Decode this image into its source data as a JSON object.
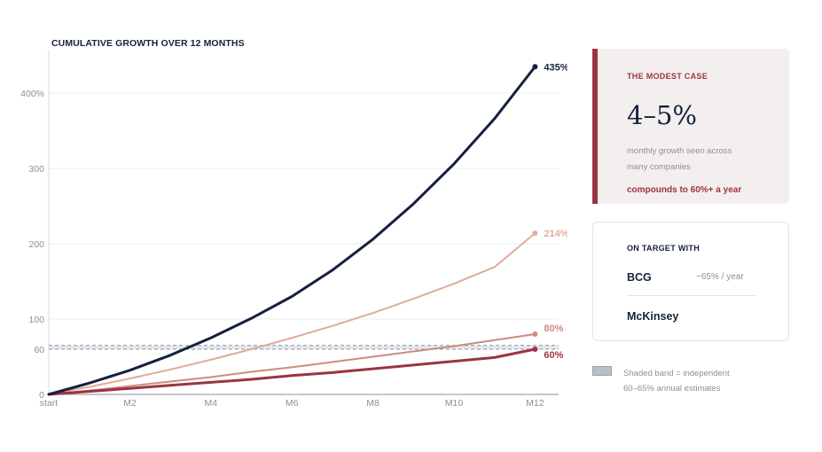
{
  "chart_data": {
    "type": "line",
    "title": "CUMULATIVE GROWTH OVER 12 MONTHS",
    "x": [
      0,
      1,
      2,
      3,
      4,
      5,
      6,
      7,
      8,
      9,
      10,
      11,
      12
    ],
    "x_tick_labels": [
      {
        "x": 0,
        "label": "start"
      },
      {
        "x": 2,
        "label": "M2"
      },
      {
        "x": 4,
        "label": "M4"
      },
      {
        "x": 6,
        "label": "M6"
      },
      {
        "x": 8,
        "label": "M8"
      },
      {
        "x": 10,
        "label": "M10"
      },
      {
        "x": 12,
        "label": "M12"
      }
    ],
    "y_ticks": [
      {
        "value": 0,
        "label": "0"
      },
      {
        "value": 60,
        "label": "60"
      },
      {
        "value": 100,
        "label": "100"
      },
      {
        "value": 200,
        "label": "200"
      },
      {
        "value": 300,
        "label": "300"
      },
      {
        "value": 400,
        "label": "400%"
      }
    ],
    "ylim": [
      0,
      460
    ],
    "xlim": [
      0,
      12.3
    ],
    "grid": true,
    "band": {
      "from": 60,
      "to": 65
    },
    "series": [
      {
        "values": [
          0,
          15,
          32,
          52,
          75,
          101,
          130,
          165,
          206,
          253,
          306,
          366,
          435
        ],
        "color": "#14213d",
        "end_label": "435%",
        "width": 3
      },
      {
        "values": [
          0,
          10,
          21,
          33,
          46,
          60,
          75,
          91,
          108,
          127,
          147,
          169,
          214
        ],
        "color": "#e0ab9a",
        "end_label": "214%",
        "width": 2
      },
      {
        "values": [
          0,
          5,
          11,
          17,
          23,
          30,
          36,
          43,
          50,
          57,
          64,
          72,
          80
        ],
        "color": "#cc8b7d",
        "end_label": "80%",
        "width": 2
      },
      {
        "values": [
          0,
          4,
          8,
          12,
          16,
          20,
          25,
          29,
          34,
          39,
          44,
          49,
          60
        ],
        "color": "#9b3442",
        "end_label": "60%",
        "width": 3
      }
    ]
  },
  "modest_card": {
    "kicker": "THE MODEST CASE",
    "headline": "4–5%",
    "sub_line1": "monthly growth seen across",
    "sub_line2": "many companies",
    "note": "compounds to 60%+ a year"
  },
  "target_card": {
    "kicker": "ON TARGET WITH",
    "firm1": "BCG",
    "firm1_value": "~65% / year",
    "firm2": "McKinsey"
  },
  "legend": {
    "line1": "Shaded band = independent",
    "line2": "60–65% annual estimates"
  },
  "colors": {
    "navy": "#14213d",
    "crimson": "#9b3442",
    "muted": "#8c8f98"
  }
}
